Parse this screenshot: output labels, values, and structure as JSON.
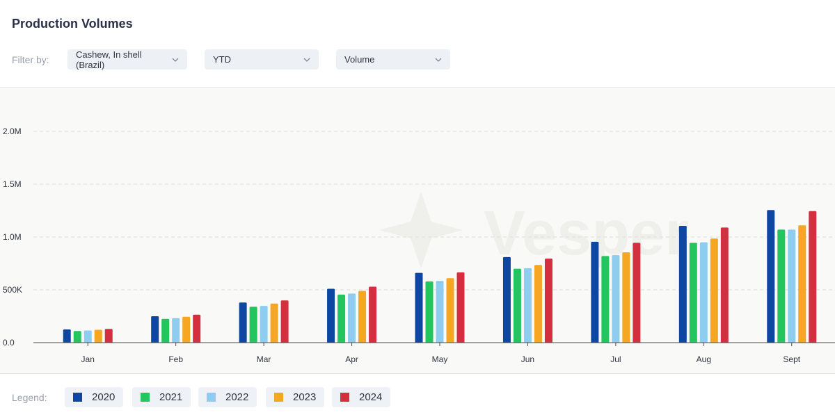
{
  "header": {
    "title": "Production Volumes"
  },
  "filters": {
    "label": "Filter by:",
    "product": "Cashew, In shell (Brazil)",
    "period": "YTD",
    "metric": "Volume"
  },
  "watermark": "Vesper",
  "legend": {
    "label": "Legend:",
    "items": [
      {
        "label": "2020",
        "color": "#0d47a1"
      },
      {
        "label": "2021",
        "color": "#22c55e"
      },
      {
        "label": "2022",
        "color": "#8ecdf0"
      },
      {
        "label": "2023",
        "color": "#f5a623"
      },
      {
        "label": "2024",
        "color": "#d32f3e"
      }
    ]
  },
  "chart_data": {
    "type": "bar",
    "categories": [
      "Jan",
      "Feb",
      "Mar",
      "Apr",
      "May",
      "Jun",
      "Jul",
      "Aug",
      "Sept"
    ],
    "series": [
      {
        "name": "2020",
        "color": "#0d47a1",
        "values": [
          125000,
          250000,
          380000,
          510000,
          660000,
          810000,
          955000,
          1105000,
          1255000
        ]
      },
      {
        "name": "2021",
        "color": "#22c55e",
        "values": [
          110000,
          225000,
          340000,
          455000,
          580000,
          700000,
          820000,
          945000,
          1070000
        ]
      },
      {
        "name": "2022",
        "color": "#8ecdf0",
        "values": [
          115000,
          232000,
          348000,
          465000,
          585000,
          705000,
          828000,
          950000,
          1070000
        ]
      },
      {
        "name": "2023",
        "color": "#f5a623",
        "values": [
          122000,
          245000,
          370000,
          490000,
          610000,
          735000,
          855000,
          985000,
          1110000
        ]
      },
      {
        "name": "2024",
        "color": "#d32f3e",
        "values": [
          130000,
          265000,
          400000,
          530000,
          665000,
          795000,
          945000,
          1090000,
          1245000
        ]
      }
    ],
    "ylim": [
      0,
      2000000
    ],
    "yticks": [
      {
        "value": 0,
        "label": "0.0"
      },
      {
        "value": 500000,
        "label": "500K"
      },
      {
        "value": 1000000,
        "label": "1.0M"
      },
      {
        "value": 1500000,
        "label": "1.5M"
      },
      {
        "value": 2000000,
        "label": "2.0M"
      }
    ],
    "grid": true
  }
}
